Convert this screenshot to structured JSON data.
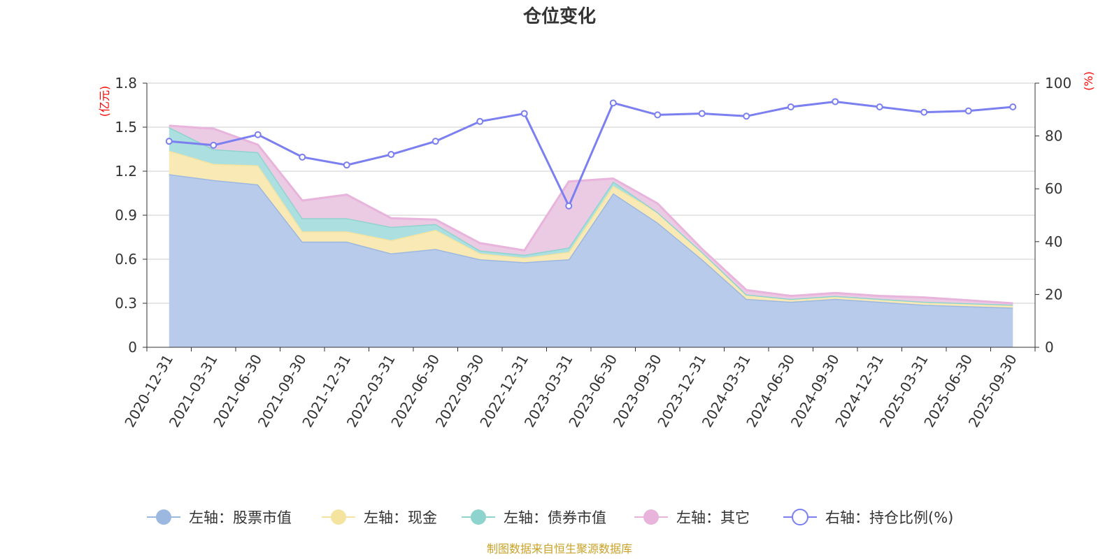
{
  "chart_data": {
    "type": "area",
    "title": "仓位变化",
    "categories": [
      "2020-12-31",
      "2021-03-31",
      "2021-06-30",
      "2021-09-30",
      "2021-12-31",
      "2022-03-31",
      "2022-06-30",
      "2022-09-30",
      "2022-12-31",
      "2023-03-31",
      "2023-06-30",
      "2023-09-30",
      "2023-12-31",
      "2024-03-31",
      "2024-06-30",
      "2024-09-30",
      "2024-12-31",
      "2025-03-31",
      "2025-06-30",
      "2025-09-30"
    ],
    "left_axis": {
      "unit": "(亿元)",
      "ylim": [
        0,
        1.8
      ],
      "ticks": [
        "0",
        "0.3",
        "0.6",
        "0.9",
        "1.2",
        "1.5",
        "1.8"
      ]
    },
    "right_axis": {
      "unit": "(%)",
      "ylim": [
        0,
        100
      ],
      "ticks": [
        "0",
        "20",
        "40",
        "60",
        "80",
        "100"
      ]
    },
    "series": [
      {
        "name": "左轴：股票市值",
        "axis": "left",
        "stack": true,
        "color": "#9db8e0",
        "fill": "#b8cbea",
        "values": [
          1.18,
          1.14,
          1.11,
          0.72,
          0.72,
          0.64,
          0.67,
          0.6,
          0.58,
          0.6,
          1.05,
          0.85,
          0.6,
          0.33,
          0.31,
          0.33,
          0.31,
          0.29,
          0.28,
          0.27
        ]
      },
      {
        "name": "左轴：现金",
        "axis": "left",
        "stack": true,
        "color": "#f5e3a0",
        "fill": "#f8e9b5",
        "values": [
          0.16,
          0.11,
          0.13,
          0.07,
          0.07,
          0.09,
          0.13,
          0.04,
          0.03,
          0.05,
          0.05,
          0.07,
          0.05,
          0.03,
          0.02,
          0.02,
          0.02,
          0.02,
          0.02,
          0.02
        ]
      },
      {
        "name": "左轴：债券市值",
        "axis": "left",
        "stack": true,
        "color": "#8fd3cf",
        "fill": "#acdfe0",
        "values": [
          0.16,
          0.1,
          0.09,
          0.09,
          0.09,
          0.09,
          0.04,
          0.02,
          0.02,
          0.03,
          0.03,
          0.0,
          0.0,
          0.0,
          0.0,
          0.0,
          0.0,
          0.0,
          0.0,
          0.0
        ]
      },
      {
        "name": "左轴：其它",
        "axis": "left",
        "stack": true,
        "color": "#e8b4dc",
        "fill": "#ebcae4",
        "values": [
          0.01,
          0.14,
          0.05,
          0.12,
          0.16,
          0.06,
          0.03,
          0.05,
          0.03,
          0.45,
          0.02,
          0.06,
          0.02,
          0.03,
          0.02,
          0.02,
          0.02,
          0.03,
          0.02,
          0.01
        ]
      },
      {
        "name": "右轴：持仓比例(%)",
        "axis": "right",
        "stack": false,
        "color": "#7b7ff0",
        "values": [
          78.0,
          76.5,
          80.5,
          72.0,
          69.0,
          73.0,
          78.0,
          85.5,
          88.5,
          53.5,
          92.5,
          88.0,
          88.5,
          87.5,
          91.0,
          93.0,
          91.0,
          89.0,
          89.5,
          91.0
        ]
      }
    ],
    "grid": true,
    "legend_position": "bottom"
  },
  "footer": {
    "source": "制图数据来自恒生聚源数据库"
  }
}
